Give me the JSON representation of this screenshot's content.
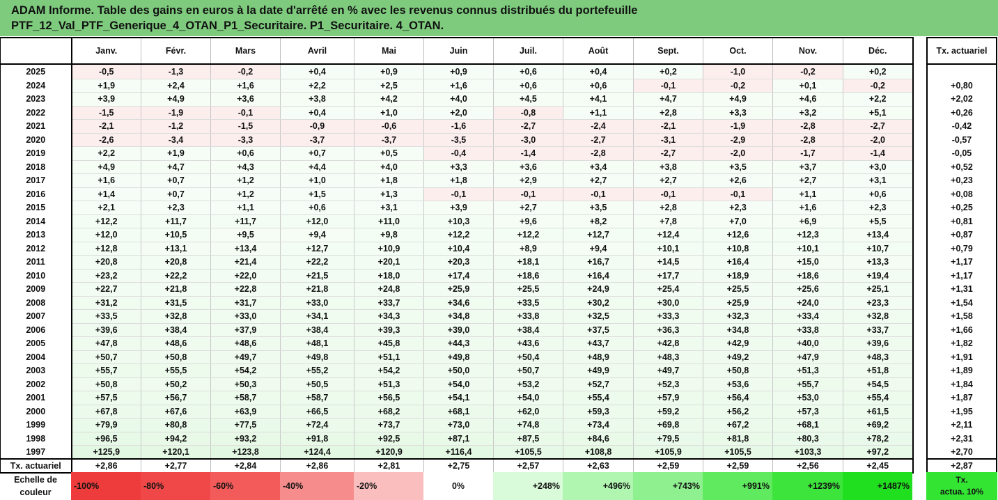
{
  "title": {
    "line1": "ADAM Informe. Table des gains en euros à la date d'arrêté en % avec les revenus connus distribués du portefeuille",
    "line2": "PTF_12_Val_PTF_Generique_4_OTAN_P1_Securitaire. P1_Securitaire. 4_OTAN."
  },
  "months": [
    "Janv.",
    "Févr.",
    "Mars",
    "Avril",
    "Mai",
    "Juin",
    "Juil.",
    "Août",
    "Sept.",
    "Oct.",
    "Nov.",
    "Déc."
  ],
  "side_header": "Tx. actuariel",
  "rows": [
    {
      "year": "2025",
      "values": [
        "-0,5",
        "-1,3",
        "-0,2",
        "+0,4",
        "+0,9",
        "+0,9",
        "+0,6",
        "+0,4",
        "+0,2",
        "-1,0",
        "-0,2",
        "+0,2"
      ],
      "tx": ""
    },
    {
      "year": "2024",
      "values": [
        "+1,9",
        "+2,4",
        "+1,6",
        "+2,2",
        "+2,5",
        "+1,6",
        "+0,6",
        "+0,6",
        "-0,1",
        "-0,2",
        "+0,1",
        "-0,2"
      ],
      "tx": "+0,80"
    },
    {
      "year": "2023",
      "values": [
        "+3,9",
        "+4,9",
        "+3,6",
        "+3,8",
        "+4,2",
        "+4,0",
        "+4,5",
        "+4,1",
        "+4,7",
        "+4,9",
        "+4,6",
        "+2,2"
      ],
      "tx": "+2,02"
    },
    {
      "year": "2022",
      "values": [
        "-1,5",
        "-1,9",
        "-0,1",
        "+0,4",
        "+1,0",
        "+2,0",
        "-0,8",
        "+1,1",
        "+2,8",
        "+3,3",
        "+3,2",
        "+5,1"
      ],
      "tx": "+0,26"
    },
    {
      "year": "2021",
      "values": [
        "-2,1",
        "-1,2",
        "-1,5",
        "-0,9",
        "-0,6",
        "-1,6",
        "-2,7",
        "-2,4",
        "-2,1",
        "-1,9",
        "-2,8",
        "-2,7"
      ],
      "tx": "-0,42"
    },
    {
      "year": "2020",
      "values": [
        "-2,6",
        "-3,4",
        "-3,3",
        "-3,7",
        "-3,7",
        "-3,5",
        "-3,0",
        "-2,7",
        "-3,1",
        "-2,9",
        "-2,8",
        "-2,0"
      ],
      "tx": "-0,57"
    },
    {
      "year": "2019",
      "values": [
        "+2,2",
        "+1,9",
        "+0,6",
        "+0,7",
        "+0,5",
        "-0,4",
        "-1,4",
        "-2,8",
        "-2,7",
        "-2,0",
        "-1,7",
        "-1,4"
      ],
      "tx": "-0,05"
    },
    {
      "year": "2018",
      "values": [
        "+4,9",
        "+4,7",
        "+4,3",
        "+4,4",
        "+4,0",
        "+3,3",
        "+3,6",
        "+3,4",
        "+3,8",
        "+3,5",
        "+3,7",
        "+3,0"
      ],
      "tx": "+0,52"
    },
    {
      "year": "2017",
      "values": [
        "+1,6",
        "+0,7",
        "+1,2",
        "+1,0",
        "+1,8",
        "+1,8",
        "+2,9",
        "+2,7",
        "+2,7",
        "+2,6",
        "+2,7",
        "+3,1"
      ],
      "tx": "+0,23"
    },
    {
      "year": "2016",
      "values": [
        "+1,4",
        "+0,7",
        "+1,2",
        "+1,5",
        "+1,3",
        "-0,1",
        "-0,1",
        "-0,1",
        "-0,1",
        "-0,1",
        "+1,1",
        "+0,6"
      ],
      "tx": "+0,08"
    },
    {
      "year": "2015",
      "values": [
        "+2,1",
        "+2,3",
        "+1,1",
        "+0,6",
        "+3,1",
        "+3,9",
        "+2,7",
        "+3,5",
        "+2,8",
        "+2,3",
        "+1,6",
        "+2,3"
      ],
      "tx": "+0,25"
    },
    {
      "year": "2014",
      "values": [
        "+12,2",
        "+11,7",
        "+11,7",
        "+12,0",
        "+11,0",
        "+10,3",
        "+9,6",
        "+8,2",
        "+7,8",
        "+7,0",
        "+6,9",
        "+5,5"
      ],
      "tx": "+0,81"
    },
    {
      "year": "2013",
      "values": [
        "+12,0",
        "+10,5",
        "+9,5",
        "+9,4",
        "+9,8",
        "+12,2",
        "+12,2",
        "+12,7",
        "+12,4",
        "+12,6",
        "+12,3",
        "+13,4"
      ],
      "tx": "+0,87"
    },
    {
      "year": "2012",
      "values": [
        "+12,8",
        "+13,1",
        "+13,4",
        "+12,7",
        "+10,9",
        "+10,4",
        "+8,9",
        "+9,4",
        "+10,1",
        "+10,8",
        "+10,1",
        "+10,7"
      ],
      "tx": "+0,79"
    },
    {
      "year": "2011",
      "values": [
        "+20,8",
        "+20,8",
        "+21,4",
        "+22,2",
        "+20,1",
        "+20,3",
        "+18,1",
        "+16,7",
        "+14,5",
        "+16,4",
        "+15,0",
        "+13,3"
      ],
      "tx": "+1,17"
    },
    {
      "year": "2010",
      "values": [
        "+23,2",
        "+22,2",
        "+22,0",
        "+21,5",
        "+18,0",
        "+17,4",
        "+18,6",
        "+16,4",
        "+17,7",
        "+18,9",
        "+18,6",
        "+19,4"
      ],
      "tx": "+1,17"
    },
    {
      "year": "2009",
      "values": [
        "+22,7",
        "+21,8",
        "+22,8",
        "+21,8",
        "+24,8",
        "+25,9",
        "+25,5",
        "+24,9",
        "+25,4",
        "+25,5",
        "+25,6",
        "+25,1"
      ],
      "tx": "+1,31"
    },
    {
      "year": "2008",
      "values": [
        "+31,2",
        "+31,5",
        "+31,7",
        "+33,0",
        "+33,7",
        "+34,6",
        "+33,5",
        "+30,2",
        "+30,0",
        "+25,9",
        "+24,0",
        "+23,3"
      ],
      "tx": "+1,54"
    },
    {
      "year": "2007",
      "values": [
        "+33,5",
        "+32,8",
        "+33,0",
        "+34,1",
        "+34,3",
        "+34,8",
        "+33,8",
        "+32,5",
        "+33,3",
        "+32,3",
        "+33,4",
        "+32,8"
      ],
      "tx": "+1,58"
    },
    {
      "year": "2006",
      "values": [
        "+39,6",
        "+38,4",
        "+37,9",
        "+38,4",
        "+39,3",
        "+39,0",
        "+38,4",
        "+37,5",
        "+36,3",
        "+34,8",
        "+33,8",
        "+33,7"
      ],
      "tx": "+1,66"
    },
    {
      "year": "2005",
      "values": [
        "+47,8",
        "+48,6",
        "+48,6",
        "+48,1",
        "+45,8",
        "+44,3",
        "+43,6",
        "+43,7",
        "+42,8",
        "+42,9",
        "+40,0",
        "+39,6"
      ],
      "tx": "+1,82"
    },
    {
      "year": "2004",
      "values": [
        "+50,7",
        "+50,8",
        "+49,7",
        "+49,8",
        "+51,1",
        "+49,8",
        "+50,4",
        "+48,9",
        "+48,3",
        "+49,2",
        "+47,9",
        "+48,3"
      ],
      "tx": "+1,91"
    },
    {
      "year": "2003",
      "values": [
        "+55,7",
        "+55,5",
        "+54,2",
        "+55,2",
        "+54,2",
        "+50,0",
        "+50,7",
        "+49,9",
        "+49,7",
        "+50,8",
        "+51,3",
        "+51,8"
      ],
      "tx": "+1,89"
    },
    {
      "year": "2002",
      "values": [
        "+50,8",
        "+50,2",
        "+50,3",
        "+50,5",
        "+51,3",
        "+54,0",
        "+53,2",
        "+52,7",
        "+52,3",
        "+53,6",
        "+55,7",
        "+54,5"
      ],
      "tx": "+1,84"
    },
    {
      "year": "2001",
      "values": [
        "+57,5",
        "+56,7",
        "+58,7",
        "+58,7",
        "+56,5",
        "+54,1",
        "+54,0",
        "+55,4",
        "+57,9",
        "+56,4",
        "+53,0",
        "+55,4"
      ],
      "tx": "+1,87"
    },
    {
      "year": "2000",
      "values": [
        "+67,8",
        "+67,6",
        "+63,9",
        "+66,5",
        "+68,2",
        "+68,1",
        "+62,0",
        "+59,3",
        "+59,2",
        "+56,2",
        "+57,3",
        "+61,5"
      ],
      "tx": "+1,95"
    },
    {
      "year": "1999",
      "values": [
        "+79,9",
        "+80,8",
        "+77,5",
        "+72,4",
        "+73,7",
        "+73,0",
        "+74,8",
        "+73,4",
        "+69,8",
        "+67,2",
        "+68,1",
        "+69,2"
      ],
      "tx": "+2,11"
    },
    {
      "year": "1998",
      "values": [
        "+96,5",
        "+94,2",
        "+93,2",
        "+91,8",
        "+92,5",
        "+87,1",
        "+87,5",
        "+84,6",
        "+79,5",
        "+81,8",
        "+80,3",
        "+78,2"
      ],
      "tx": "+2,31"
    },
    {
      "year": "1997",
      "values": [
        "+125,9",
        "+120,1",
        "+123,8",
        "+124,4",
        "+120,9",
        "+116,4",
        "+105,5",
        "+108,8",
        "+105,9",
        "+105,5",
        "+103,3",
        "+97,2"
      ],
      "tx": "+2,70"
    }
  ],
  "tx_row": {
    "label": "Tx. actuariel",
    "values": [
      "+2,86",
      "+2,77",
      "+2,84",
      "+2,86",
      "+2,81",
      "+2,75",
      "+2,57",
      "+2,63",
      "+2,59",
      "+2,59",
      "+2,56",
      "+2,45"
    ],
    "total": "+2,87"
  },
  "legend": {
    "label_line1": "Echelle de",
    "label_line2": "couleur",
    "items": [
      {
        "text": "-100%",
        "kind": "neg",
        "color": "#ee3b3b"
      },
      {
        "text": "-80%",
        "kind": "neg",
        "color": "#f04848"
      },
      {
        "text": "-60%",
        "kind": "neg",
        "color": "#f35a5a"
      },
      {
        "text": "-40%",
        "kind": "neg",
        "color": "#f68c8c"
      },
      {
        "text": "-20%",
        "kind": "neg",
        "color": "#fabebe"
      },
      {
        "text": "0%",
        "kind": "zero",
        "color": "#ffffff"
      },
      {
        "text": "+248%",
        "kind": "pos",
        "color": "#d9fbd9"
      },
      {
        "text": "+496%",
        "kind": "pos",
        "color": "#b0f5b0"
      },
      {
        "text": "+743%",
        "kind": "pos",
        "color": "#8ef08e"
      },
      {
        "text": "+991%",
        "kind": "pos",
        "color": "#5fea5f"
      },
      {
        "text": "+1239%",
        "kind": "pos",
        "color": "#3ce43c"
      },
      {
        "text": "+1487%",
        "kind": "pos",
        "color": "#1fdf1f"
      }
    ],
    "side_line1": "Tx.",
    "side_line2": "actua. 10%",
    "side_color": "#33e433"
  },
  "colors": {
    "title_background": "#7ecb7e",
    "negative_cell": "#fdeeee",
    "positive_light": "#f6fdf6",
    "positive_strong": "#e2f8e2"
  }
}
